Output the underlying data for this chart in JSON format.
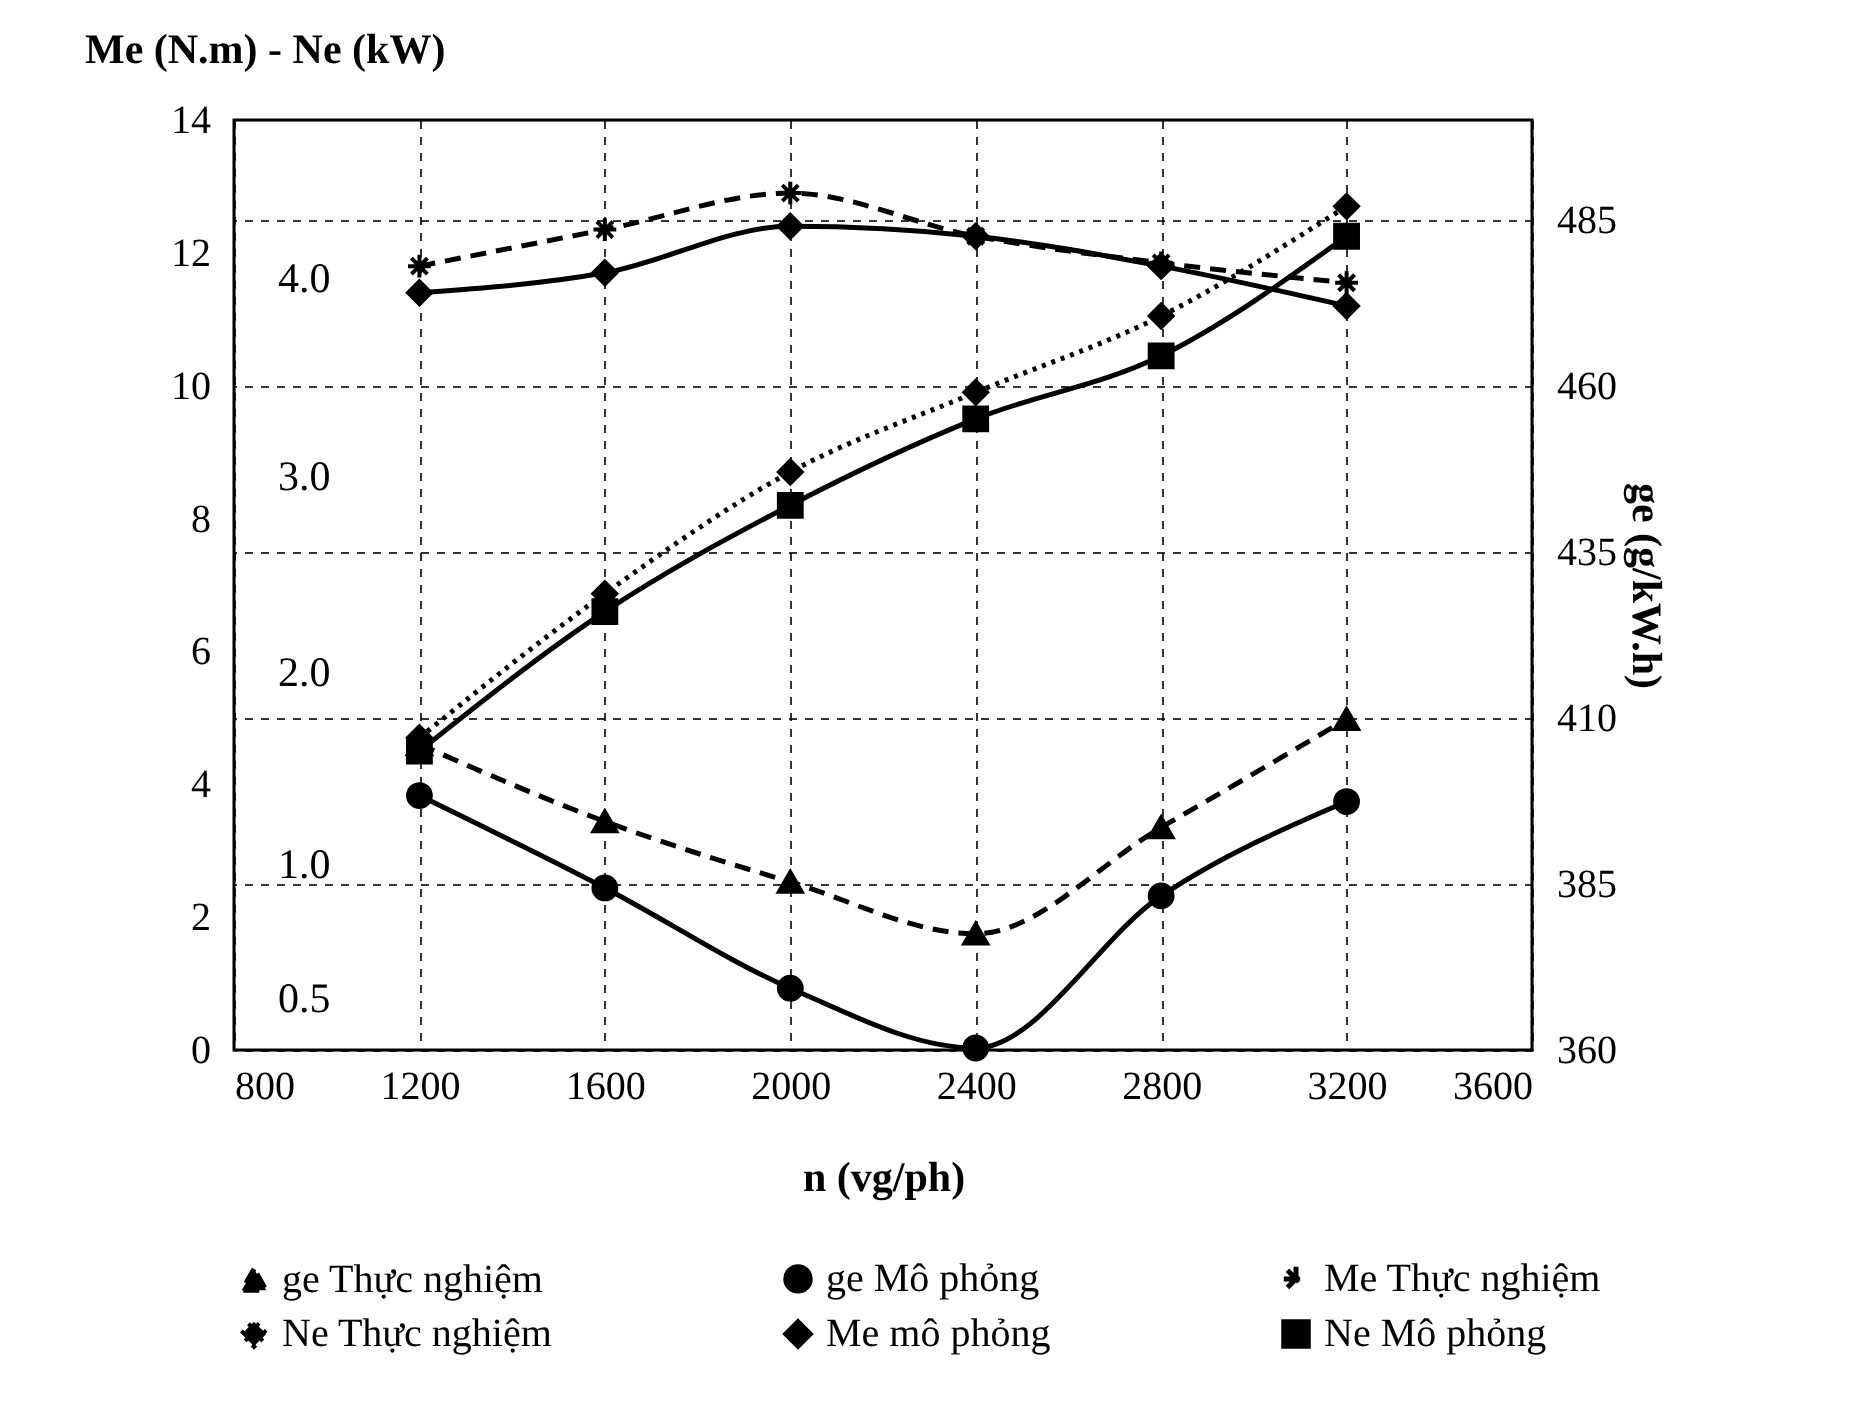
{
  "chart_data": {
    "type": "line",
    "xlabel": "n (vg/ph)",
    "ylabel": "Me (N.m) - Ne (kW)",
    "y2label": "ge (g/kW.h)",
    "x": [
      1200,
      1600,
      2000,
      2400,
      2800,
      3200
    ],
    "series": [
      {
        "name": "ge Thực nghiệm",
        "color": "#000000",
        "axis": "y2",
        "marker": "triangle",
        "line_style": "dashed",
        "values": [
          406,
          394.4,
          385.3,
          377.5,
          393.5,
          409.8
        ]
      },
      {
        "name": "ge Mô phỏng",
        "color": "#000000",
        "axis": "y2",
        "marker": "circle",
        "line_style": "solid",
        "values": [
          398.3,
          384.4,
          369.3,
          360.3,
          383.2,
          397.4
        ]
      },
      {
        "name": "Me Thực nghiệm",
        "color": "#000000",
        "marker": "cross",
        "line_style": "dashed",
        "values": [
          11.8,
          12.35,
          12.9,
          12.25,
          11.85,
          11.55
        ]
      },
      {
        "name": "Ne Thực nghiệm",
        "color": "#000000",
        "marker": "diamond",
        "line_style": "dotted",
        "values": [
          4.7,
          6.87,
          8.7,
          9.9,
          11.05,
          12.7
        ]
      },
      {
        "name": "Me mô phỏng",
        "color": "#000000",
        "marker": "diamond",
        "line_style": "solid",
        "values": [
          11.4,
          11.7,
          12.4,
          12.25,
          11.8,
          11.2
        ]
      },
      {
        "name": "Ne Mô phỏng",
        "color": "#000000",
        "marker": "square",
        "line_style": "solid",
        "values": [
          4.5,
          6.6,
          8.2,
          9.5,
          10.45,
          12.25
        ]
      }
    ],
    "xlim": [
      800,
      3600
    ],
    "xticks": [
      800,
      1200,
      1600,
      2000,
      2400,
      2800,
      3200,
      3600
    ],
    "ylim": [
      0,
      14
    ],
    "yticks": [
      0,
      2,
      4,
      6,
      8,
      10,
      12,
      14
    ],
    "y2lim": [
      360,
      500
    ],
    "y2ticks": [
      360,
      385,
      410,
      435,
      460,
      485
    ],
    "annotations": [
      "4.0",
      "3.0",
      "2.0",
      "1.0",
      "0.5"
    ],
    "grid": true,
    "legend": "bottom"
  }
}
